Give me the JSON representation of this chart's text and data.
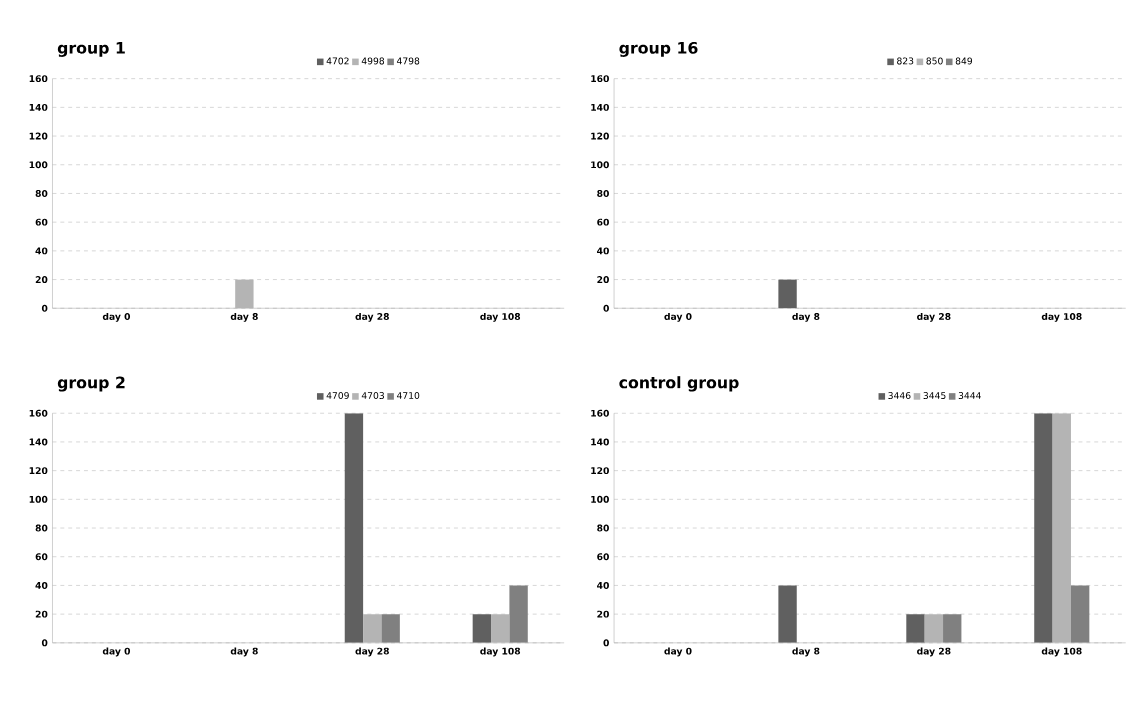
{
  "chart_data": [
    {
      "type": "bar",
      "title": "group 1",
      "categories": [
        "day 0",
        "day 8",
        "day 28",
        "day 108"
      ],
      "ylim": [
        0,
        160
      ],
      "yticks": [
        0,
        20,
        40,
        60,
        80,
        100,
        120,
        140,
        160
      ],
      "grid": "y",
      "legend": "top",
      "series": [
        {
          "name": "4702",
          "color": "#606060",
          "values": [
            0,
            0,
            0,
            0
          ]
        },
        {
          "name": "4998",
          "color": "#b4b4b4",
          "values": [
            0,
            20,
            0,
            0
          ]
        },
        {
          "name": "4798",
          "color": "#808080",
          "values": [
            0,
            0,
            0,
            0
          ]
        }
      ]
    },
    {
      "type": "bar",
      "title": "group 16",
      "categories": [
        "day 0",
        "day 8",
        "day 28",
        "day 108"
      ],
      "ylim": [
        0,
        160
      ],
      "yticks": [
        0,
        20,
        40,
        60,
        80,
        100,
        120,
        140,
        160
      ],
      "grid": "y",
      "legend": "top",
      "series": [
        {
          "name": "823",
          "color": "#606060",
          "values": [
            0,
            20,
            0,
            0
          ]
        },
        {
          "name": "850",
          "color": "#b4b4b4",
          "values": [
            0,
            0,
            0,
            0
          ]
        },
        {
          "name": "849",
          "color": "#808080",
          "values": [
            0,
            0,
            0,
            0
          ]
        }
      ]
    },
    {
      "type": "bar",
      "title": "group 2",
      "categories": [
        "day 0",
        "day 8",
        "day 28",
        "day 108"
      ],
      "ylim": [
        0,
        160
      ],
      "yticks": [
        0,
        20,
        40,
        60,
        80,
        100,
        120,
        140,
        160
      ],
      "grid": "y",
      "legend": "top",
      "series": [
        {
          "name": "4709",
          "color": "#606060",
          "values": [
            0,
            0,
            160,
            20
          ]
        },
        {
          "name": "4703",
          "color": "#b4b4b4",
          "values": [
            0,
            0,
            20,
            20
          ]
        },
        {
          "name": "4710",
          "color": "#808080",
          "values": [
            0,
            0,
            20,
            40
          ]
        }
      ]
    },
    {
      "type": "bar",
      "title": "control group",
      "categories": [
        "day 0",
        "day 8",
        "day 28",
        "day 108"
      ],
      "ylim": [
        0,
        160
      ],
      "yticks": [
        0,
        20,
        40,
        60,
        80,
        100,
        120,
        140,
        160
      ],
      "grid": "y",
      "legend": "top",
      "series": [
        {
          "name": "3446",
          "color": "#606060",
          "values": [
            0,
            40,
            20,
            160
          ]
        },
        {
          "name": "3445",
          "color": "#b4b4b4",
          "values": [
            0,
            0,
            20,
            160
          ]
        },
        {
          "name": "3444",
          "color": "#808080",
          "values": [
            0,
            0,
            20,
            40
          ]
        }
      ]
    }
  ]
}
